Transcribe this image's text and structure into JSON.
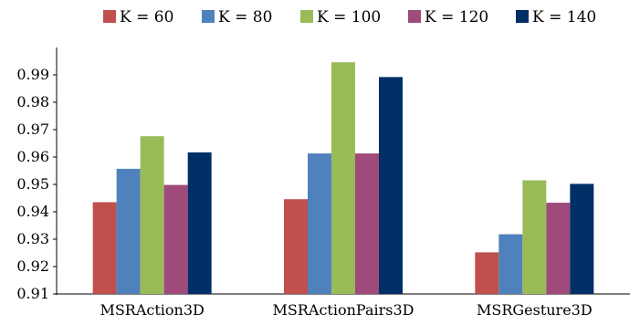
{
  "chart_data": {
    "type": "bar",
    "categories": [
      "MSRAction3D",
      "MSRActionPairs3D",
      "MSRGesture3D"
    ],
    "series": [
      {
        "name": "K = 60",
        "color": "#c0504d",
        "values": [
          0.9435,
          0.9446,
          0.9252
        ]
      },
      {
        "name": "K = 80",
        "color": "#4f81bd",
        "values": [
          0.9557,
          0.9613,
          0.9318
        ]
      },
      {
        "name": "K = 100",
        "color": "#9bbb59",
        "values": [
          0.9676,
          0.9946,
          0.9515
        ]
      },
      {
        "name": "K = 120",
        "color": "#9e4a7a",
        "values": [
          0.9498,
          0.9613,
          0.9433
        ]
      },
      {
        "name": "K = 140",
        "color": "#002f66",
        "values": [
          0.9617,
          0.9892,
          0.9502
        ]
      }
    ],
    "yticks": [
      "0.91",
      "0.92",
      "0.93",
      "0.94",
      "0.95",
      "0.96",
      "0.97",
      "0.98",
      "0.99"
    ],
    "ylim": [
      0.91,
      1.0
    ],
    "title": "",
    "xlabel": "",
    "ylabel": "",
    "legend_position": "top",
    "grid": false
  }
}
